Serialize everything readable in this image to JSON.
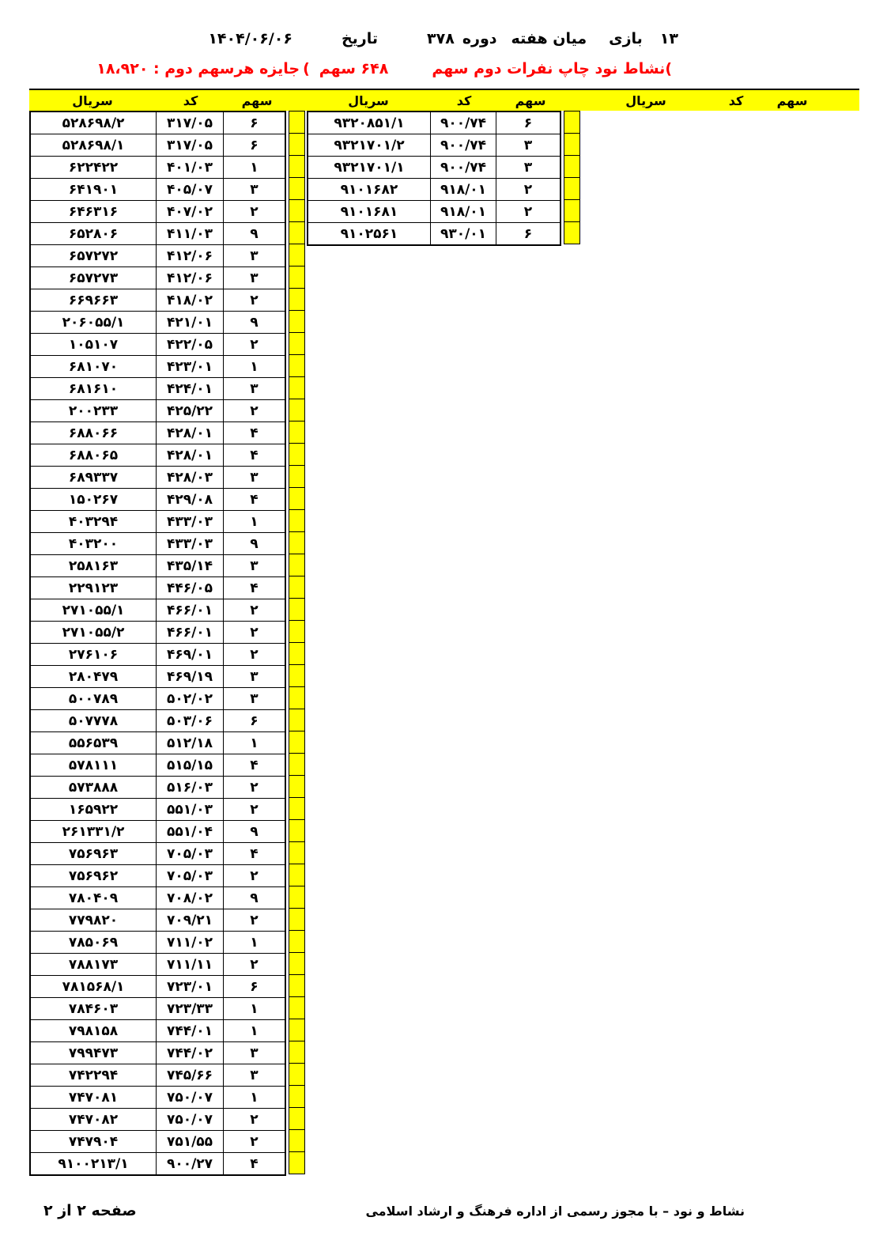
{
  "header": {
    "game_count": "۱۳",
    "game_label": "بازی",
    "midweek_label": "میان هفته",
    "period_label": "دوره",
    "period_number": "۳۷۸",
    "date_label": "تاریخ",
    "date_value": "۱۴۰۴/۰۶/۰۶"
  },
  "subheader": {
    "open_paren": "(",
    "title": "نشاط نود  چاپ نفرات دوم سهم",
    "total_shares": "۶۴۸ سهم",
    "prize_paren": "(",
    "prize_text": "جایزه هرسهم دوم : ۱۸،۹۲۰"
  },
  "columns": {
    "serial": "سریال",
    "code": "کد",
    "share": "سهم"
  },
  "tables": {
    "left": [
      {
        "serial": "۵۲۸۶۹۸/۲",
        "code": "۳۱۷/۰۵",
        "share": "۶"
      },
      {
        "serial": "۵۲۸۶۹۸/۱",
        "code": "۳۱۷/۰۵",
        "share": "۶"
      },
      {
        "serial": "۶۲۲۴۲۲",
        "code": "۴۰۱/۰۳",
        "share": "۱"
      },
      {
        "serial": "۶۴۱۹۰۱",
        "code": "۴۰۵/۰۷",
        "share": "۳"
      },
      {
        "serial": "۶۴۶۳۱۶",
        "code": "۴۰۷/۰۲",
        "share": "۲"
      },
      {
        "serial": "۶۵۲۸۰۶",
        "code": "۴۱۱/۰۳",
        "share": "۹"
      },
      {
        "serial": "۶۵۷۲۷۲",
        "code": "۴۱۲/۰۶",
        "share": "۳"
      },
      {
        "serial": "۶۵۷۲۷۳",
        "code": "۴۱۲/۰۶",
        "share": "۳"
      },
      {
        "serial": "۶۶۹۶۶۳",
        "code": "۴۱۸/۰۲",
        "share": "۲"
      },
      {
        "serial": "۲۰۶۰۵۵/۱",
        "code": "۴۲۱/۰۱",
        "share": "۹"
      },
      {
        "serial": "۱۰۵۱۰۷",
        "code": "۴۲۲/۰۵",
        "share": "۲"
      },
      {
        "serial": "۶۸۱۰۷۰",
        "code": "۴۲۳/۰۱",
        "share": "۱"
      },
      {
        "serial": "۶۸۱۶۱۰",
        "code": "۴۲۴/۰۱",
        "share": "۳"
      },
      {
        "serial": "۲۰۰۲۳۳",
        "code": "۴۲۵/۲۲",
        "share": "۲"
      },
      {
        "serial": "۶۸۸۰۶۶",
        "code": "۴۲۸/۰۱",
        "share": "۴"
      },
      {
        "serial": "۶۸۸۰۶۵",
        "code": "۴۲۸/۰۱",
        "share": "۴"
      },
      {
        "serial": "۶۸۹۳۳۷",
        "code": "۴۲۸/۰۳",
        "share": "۳"
      },
      {
        "serial": "۱۵۰۲۶۷",
        "code": "۴۲۹/۰۸",
        "share": "۴"
      },
      {
        "serial": "۴۰۳۲۹۴",
        "code": "۴۳۳/۰۳",
        "share": "۱"
      },
      {
        "serial": "۴۰۳۲۰۰",
        "code": "۴۳۳/۰۳",
        "share": "۹"
      },
      {
        "serial": "۲۵۸۱۶۳",
        "code": "۴۳۵/۱۴",
        "share": "۳"
      },
      {
        "serial": "۲۲۹۱۲۳",
        "code": "۴۴۶/۰۵",
        "share": "۴"
      },
      {
        "serial": "۲۷۱۰۵۵/۱",
        "code": "۴۶۶/۰۱",
        "share": "۲"
      },
      {
        "serial": "۲۷۱۰۵۵/۲",
        "code": "۴۶۶/۰۱",
        "share": "۲"
      },
      {
        "serial": "۲۷۶۱۰۶",
        "code": "۴۶۹/۰۱",
        "share": "۲"
      },
      {
        "serial": "۲۸۰۴۷۹",
        "code": "۴۶۹/۱۹",
        "share": "۳"
      },
      {
        "serial": "۵۰۰۷۸۹",
        "code": "۵۰۲/۰۲",
        "share": "۳"
      },
      {
        "serial": "۵۰۷۷۷۸",
        "code": "۵۰۳/۰۶",
        "share": "۶"
      },
      {
        "serial": "۵۵۶۵۳۹",
        "code": "۵۱۲/۱۸",
        "share": "۱"
      },
      {
        "serial": "۵۷۸۱۱۱",
        "code": "۵۱۵/۱۵",
        "share": "۴"
      },
      {
        "serial": "۵۷۳۸۸۸",
        "code": "۵۱۶/۰۳",
        "share": "۲"
      },
      {
        "serial": "۱۶۵۹۲۲",
        "code": "۵۵۱/۰۳",
        "share": "۲"
      },
      {
        "serial": "۲۶۱۳۳۱/۲",
        "code": "۵۵۱/۰۴",
        "share": "۹"
      },
      {
        "serial": "۷۵۶۹۶۳",
        "code": "۷۰۵/۰۳",
        "share": "۴"
      },
      {
        "serial": "۷۵۶۹۶۲",
        "code": "۷۰۵/۰۳",
        "share": "۲"
      },
      {
        "serial": "۷۸۰۴۰۹",
        "code": "۷۰۸/۰۲",
        "share": "۹"
      },
      {
        "serial": "۷۷۹۸۲۰",
        "code": "۷۰۹/۲۱",
        "share": "۲"
      },
      {
        "serial": "۷۸۵۰۶۹",
        "code": "۷۱۱/۰۲",
        "share": "۱"
      },
      {
        "serial": "۷۸۸۱۷۳",
        "code": "۷۱۱/۱۱",
        "share": "۲"
      },
      {
        "serial": "۷۸۱۵۶۸/۱",
        "code": "۷۲۳/۰۱",
        "share": "۶"
      },
      {
        "serial": "۷۸۴۶۰۳",
        "code": "۷۲۳/۳۳",
        "share": "۱"
      },
      {
        "serial": "۷۹۸۱۵۸",
        "code": "۷۴۴/۰۱",
        "share": "۱"
      },
      {
        "serial": "۷۹۹۴۷۳",
        "code": "۷۴۴/۰۲",
        "share": "۳"
      },
      {
        "serial": "۷۴۲۲۹۴",
        "code": "۷۴۵/۶۶",
        "share": "۳"
      },
      {
        "serial": "۷۴۷۰۸۱",
        "code": "۷۵۰/۰۷",
        "share": "۱"
      },
      {
        "serial": "۷۴۷۰۸۲",
        "code": "۷۵۰/۰۷",
        "share": "۲"
      },
      {
        "serial": "۷۴۷۹۰۴",
        "code": "۷۵۱/۵۵",
        "share": "۲"
      },
      {
        "serial": "۹۱۰۰۲۱۳/۱",
        "code": "۹۰۰/۲۷",
        "share": "۴"
      }
    ],
    "middle": [
      {
        "serial": "۹۳۲۰۸۵۱/۱",
        "code": "۹۰۰/۷۴",
        "share": "۶"
      },
      {
        "serial": "۹۳۲۱۷۰۱/۲",
        "code": "۹۰۰/۷۴",
        "share": "۳"
      },
      {
        "serial": "۹۳۲۱۷۰۱/۱",
        "code": "۹۰۰/۷۴",
        "share": "۳"
      },
      {
        "serial": "۹۱۰۱۶۸۲",
        "code": "۹۱۸/۰۱",
        "share": "۲"
      },
      {
        "serial": "۹۱۰۱۶۸۱",
        "code": "۹۱۸/۰۱",
        "share": "۲"
      },
      {
        "serial": "۹۱۰۲۵۶۱",
        "code": "۹۳۰/۰۱",
        "share": "۶"
      }
    ],
    "right": []
  },
  "footer": {
    "license": "نشاط و نود – با مجوز رسمی از اداره فرهنگ و ارشاد اسلامی",
    "page": "صفحه ۲ از ۲"
  },
  "colors": {
    "header_bg": "#FFFF00",
    "subheader_red": "#FF0000",
    "text": "#000000",
    "border": "#000000"
  }
}
